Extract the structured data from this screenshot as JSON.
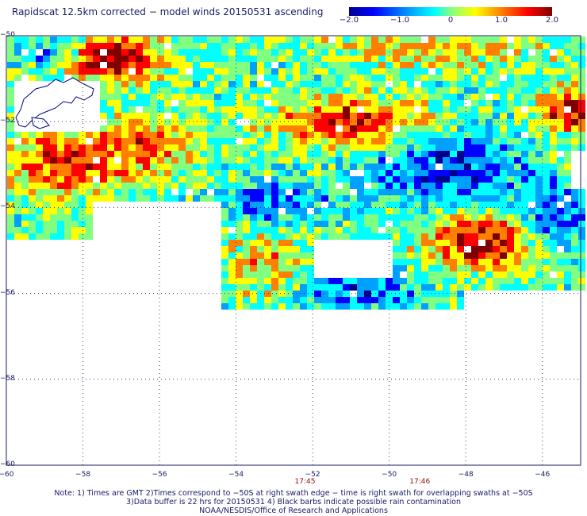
{
  "title": "Rapidscat 12.5km corrected − model winds 20150531 ascending",
  "colorbar": {
    "ticks": [
      {
        "value": -2.0,
        "label": "−2.0"
      },
      {
        "value": -1.0,
        "label": "−1.0"
      },
      {
        "value": 0,
        "label": "0"
      },
      {
        "value": 1.0,
        "label": "1.0"
      },
      {
        "value": 2.0,
        "label": "2.0"
      }
    ],
    "colors": [
      "#00008f",
      "#0000ff",
      "#00a0ff",
      "#00ffff",
      "#80ff80",
      "#ffff00",
      "#ff8000",
      "#ff0000",
      "#800000"
    ]
  },
  "map": {
    "lon_range": [
      -60,
      -45
    ],
    "lat_range": [
      -60,
      -50
    ],
    "lat_labels": [
      "−50",
      "−52",
      "−54",
      "−56",
      "−58",
      "−60"
    ],
    "lon_labels": [
      "−60",
      "−58",
      "−56",
      "−54",
      "−52",
      "−50",
      "−48",
      "−46"
    ],
    "times": [
      {
        "lon": -52.2,
        "label": "17:45"
      },
      {
        "lon": -49.2,
        "label": "17:46"
      }
    ]
  },
  "notes": {
    "line1": "Note: 1) Times are GMT 2)Times correspond to −50S at right swath edge − time is right swath for overlapping swaths at −50S",
    "line2": "3)Data buffer is 22 hrs for 20150531 4) Black barbs indicate possible rain contamination",
    "line3": "NOAA/NESDIS/Office of Research and Applications"
  }
}
